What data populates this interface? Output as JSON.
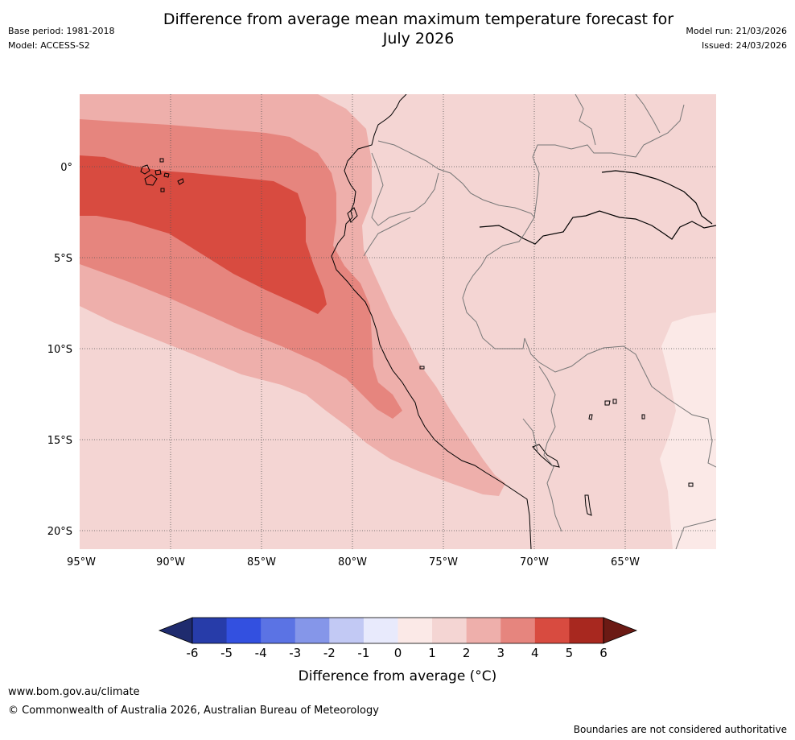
{
  "header": {
    "title_line1": "Difference from average mean maximum temperature forecast for",
    "title_line2": "July 2026",
    "base_period": "Base period: 1981-2018",
    "model": "Model: ACCESS-S2",
    "model_run": "Model run: 21/03/2026",
    "issued": "Issued: 24/03/2026"
  },
  "map": {
    "longitude_labels": [
      "95°W",
      "90°W",
      "85°W",
      "80°W",
      "75°W",
      "70°W",
      "65°W"
    ],
    "latitude_labels": [
      "0°",
      "5°S",
      "10°S",
      "15°S",
      "20°S"
    ],
    "lon_range": [
      -95,
      -60
    ],
    "lat_range": [
      -21,
      4
    ],
    "zones": [
      {
        "name": "anomaly-1-2",
        "range": "1 to 2",
        "color": "#f4d5d3"
      },
      {
        "name": "anomaly-0-1",
        "range": "0 to 1",
        "color": "#fbe9e7"
      },
      {
        "name": "anomaly-2-3",
        "range": "2 to 3",
        "color": "#eeafab"
      },
      {
        "name": "anomaly-3-4",
        "range": "3 to 4",
        "color": "#e6857e"
      },
      {
        "name": "anomaly-4-5",
        "range": "4 to 5",
        "color": "#d84b40"
      }
    ]
  },
  "colorbar": {
    "ticks": [
      "-6",
      "-5",
      "-4",
      "-3",
      "-2",
      "-1",
      "0",
      "1",
      "2",
      "3",
      "4",
      "5",
      "6"
    ],
    "colors": [
      "#273ca9",
      "#3350e0",
      "#5b73e4",
      "#8596e9",
      "#c2c9f4",
      "#e8eafc",
      "#fbe9e7",
      "#f4d5d3",
      "#eeafab",
      "#e6857e",
      "#d84b40",
      "#a8281f"
    ],
    "under_color": "#1f2b6e",
    "over_color": "#6b1a14",
    "title": "Difference from average (°C)"
  },
  "footer": {
    "url": "www.bom.gov.au/climate",
    "copyright": "© Commonwealth of Australia 2026, Australian Bureau of Meteorology",
    "disclaimer": "Boundaries are not considered authoritative"
  }
}
